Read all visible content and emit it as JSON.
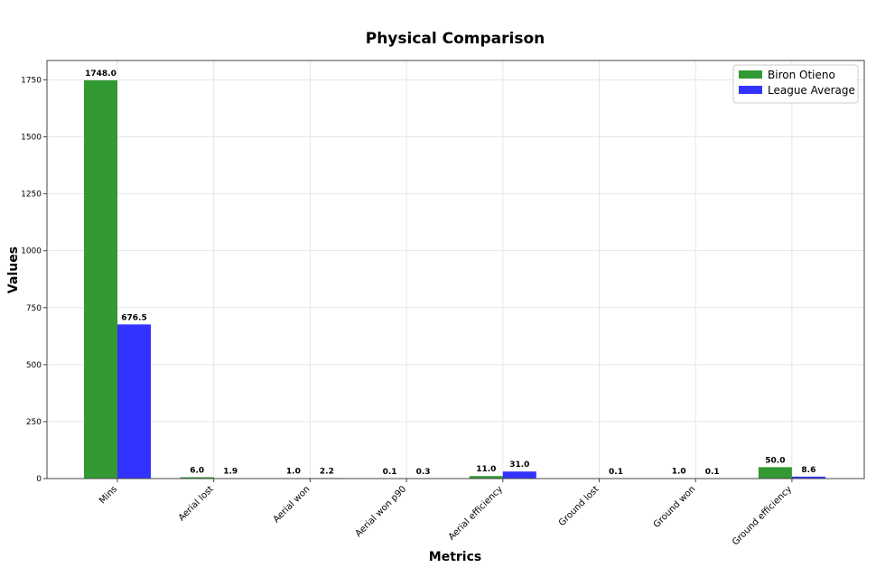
{
  "chart_data": {
    "type": "bar",
    "title": "Physical Comparison",
    "xlabel": "Metrics",
    "ylabel": "Values",
    "categories": [
      "Mins",
      "Aerial lost",
      "Aerial won",
      "Aerial won p90",
      "Aerial efficiency",
      "Ground lost",
      "Ground won",
      "Ground efficiency"
    ],
    "series": [
      {
        "name": "Biron Otieno",
        "color": "#339933",
        "values": [
          1748.0,
          6.0,
          1.0,
          0.1,
          11.0,
          0.0,
          1.0,
          50.0
        ],
        "labels": [
          "1748.0",
          "6.0",
          "1.0",
          "0.1",
          "11.0",
          "",
          "1.0",
          "50.0"
        ]
      },
      {
        "name": "League Average",
        "color": "#3333ff",
        "values": [
          676.5,
          1.9,
          2.2,
          0.3,
          31.0,
          0.1,
          0.1,
          8.6
        ],
        "labels": [
          "676.5",
          "1.9",
          "2.2",
          "0.3",
          "31.0",
          "0.1",
          "0.1",
          "8.6"
        ]
      }
    ],
    "ylim": [
      0,
      1835
    ],
    "yticks": [
      0,
      250,
      500,
      750,
      1000,
      1250,
      1500,
      1750
    ],
    "grid": true,
    "legend_position": "top-right"
  }
}
